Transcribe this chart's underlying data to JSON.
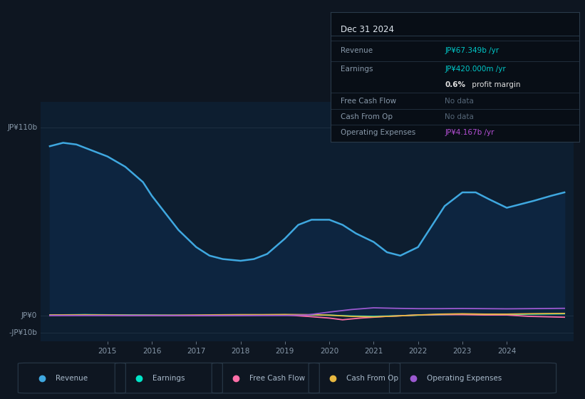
{
  "bg_color": "#0e1621",
  "plot_bg_color": "#0d1e30",
  "grid_color": "#1c2e40",
  "ylim": [
    -15,
    125
  ],
  "xlim": [
    2013.5,
    2025.5
  ],
  "xticks": [
    2015,
    2016,
    2017,
    2018,
    2019,
    2020,
    2021,
    2022,
    2023,
    2024
  ],
  "ytick_positions": [
    -10,
    0,
    110
  ],
  "ytick_labels": [
    "-JP¥10b",
    "JP¥0",
    "JP¥110b"
  ],
  "revenue": {
    "x": [
      2013.7,
      2014.0,
      2014.3,
      2014.6,
      2015.0,
      2015.4,
      2015.8,
      2016.0,
      2016.3,
      2016.6,
      2017.0,
      2017.3,
      2017.6,
      2018.0,
      2018.3,
      2018.6,
      2019.0,
      2019.3,
      2019.6,
      2020.0,
      2020.3,
      2020.6,
      2021.0,
      2021.3,
      2021.6,
      2022.0,
      2022.3,
      2022.6,
      2023.0,
      2023.3,
      2023.6,
      2024.0,
      2024.3,
      2024.6,
      2025.0,
      2025.3
    ],
    "y": [
      99,
      101,
      100,
      97,
      93,
      87,
      78,
      70,
      60,
      50,
      40,
      35,
      33,
      32,
      33,
      36,
      45,
      53,
      56,
      56,
      53,
      48,
      43,
      37,
      35,
      40,
      52,
      64,
      72,
      72,
      68,
      63,
      65,
      67,
      70,
      72
    ],
    "color": "#3fa8e0",
    "fill_color": "#0d2540",
    "label": "Revenue"
  },
  "earnings": {
    "x": [
      2013.7,
      2014.5,
      2015.0,
      2015.5,
      2016.0,
      2016.5,
      2017.0,
      2017.5,
      2018.0,
      2018.5,
      2019.0,
      2019.5,
      2020.0,
      2020.5,
      2021.0,
      2021.5,
      2022.0,
      2022.5,
      2023.0,
      2023.5,
      2024.0,
      2024.5,
      2025.3
    ],
    "y": [
      0.3,
      0.5,
      0.4,
      0.3,
      0.2,
      0.1,
      0.0,
      0.1,
      0.2,
      0.3,
      0.4,
      0.3,
      0.2,
      -0.3,
      -0.5,
      -0.2,
      0.2,
      0.5,
      0.8,
      0.6,
      0.5,
      0.8,
      1.0
    ],
    "color": "#00e5c8",
    "label": "Earnings"
  },
  "free_cash_flow": {
    "x": [
      2013.7,
      2014.5,
      2015.0,
      2015.5,
      2016.0,
      2016.5,
      2017.0,
      2017.5,
      2018.0,
      2018.5,
      2019.0,
      2019.5,
      2020.0,
      2020.3,
      2020.5,
      2020.7,
      2021.0,
      2021.3,
      2021.5,
      2022.0,
      2022.5,
      2023.0,
      2023.5,
      2024.0,
      2024.5,
      2025.3
    ],
    "y": [
      0.1,
      0.2,
      0.1,
      0.0,
      0.0,
      -0.1,
      -0.1,
      0.0,
      0.1,
      0.2,
      0.3,
      -0.5,
      -1.5,
      -2.5,
      -2.0,
      -1.5,
      -1.0,
      -0.5,
      -0.3,
      0.3,
      0.5,
      0.5,
      0.3,
      0.3,
      -0.5,
      -1.0
    ],
    "color": "#ff6fa8",
    "label": "Free Cash Flow"
  },
  "cash_from_op": {
    "x": [
      2013.7,
      2014.5,
      2015.0,
      2015.5,
      2016.0,
      2016.5,
      2017.0,
      2017.5,
      2018.0,
      2018.5,
      2019.0,
      2019.5,
      2020.0,
      2020.5,
      2021.0,
      2021.5,
      2022.0,
      2022.5,
      2023.0,
      2023.5,
      2024.0,
      2024.5,
      2025.3
    ],
    "y": [
      0.3,
      0.4,
      0.3,
      0.2,
      0.2,
      0.2,
      0.3,
      0.4,
      0.5,
      0.5,
      0.6,
      0.5,
      0.2,
      -0.5,
      -0.8,
      -0.3,
      0.3,
      0.8,
      1.0,
      0.8,
      0.8,
      1.0,
      1.2
    ],
    "color": "#e8b840",
    "label": "Cash From Op"
  },
  "operating_expenses": {
    "x": [
      2013.7,
      2014.5,
      2015.0,
      2015.5,
      2016.0,
      2016.5,
      2017.0,
      2017.5,
      2018.0,
      2018.5,
      2019.0,
      2019.5,
      2020.0,
      2020.5,
      2021.0,
      2021.5,
      2022.0,
      2022.5,
      2023.0,
      2023.5,
      2024.0,
      2024.5,
      2025.3
    ],
    "y": [
      0.0,
      0.0,
      0.0,
      0.0,
      0.0,
      0.0,
      0.0,
      0.0,
      0.0,
      0.0,
      0.0,
      0.3,
      2.0,
      3.5,
      4.5,
      4.2,
      4.0,
      4.0,
      4.1,
      4.0,
      3.9,
      4.0,
      4.2
    ],
    "color": "#9b59d0",
    "label": "Operating Expenses"
  },
  "info_box": {
    "title": "Dec 31 2024",
    "rows": [
      {
        "label": "Revenue",
        "value": "JP¥67.349b /yr",
        "value_color": "#00c8c8",
        "label_color": "#8899aa"
      },
      {
        "label": "Earnings",
        "value": "JP¥420.000m /yr",
        "value_color": "#00c8c8",
        "label_color": "#8899aa"
      },
      {
        "label": "",
        "value": "0.6% profit margin",
        "value_color": "#dddddd",
        "label_color": "#8899aa"
      },
      {
        "label": "Free Cash Flow",
        "value": "No data",
        "value_color": "#556677",
        "label_color": "#8899aa"
      },
      {
        "label": "Cash From Op",
        "value": "No data",
        "value_color": "#556677",
        "label_color": "#8899aa"
      },
      {
        "label": "Operating Expenses",
        "value": "JP¥4.167b /yr",
        "value_color": "#b44fd4",
        "label_color": "#8899aa"
      }
    ]
  },
  "legend_items": [
    {
      "label": "Revenue",
      "color": "#3fa8e0"
    },
    {
      "label": "Earnings",
      "color": "#00e5c8"
    },
    {
      "label": "Free Cash Flow",
      "color": "#ff6fa8"
    },
    {
      "label": "Cash From Op",
      "color": "#e8b840"
    },
    {
      "label": "Operating Expenses",
      "color": "#9b59d0"
    }
  ]
}
